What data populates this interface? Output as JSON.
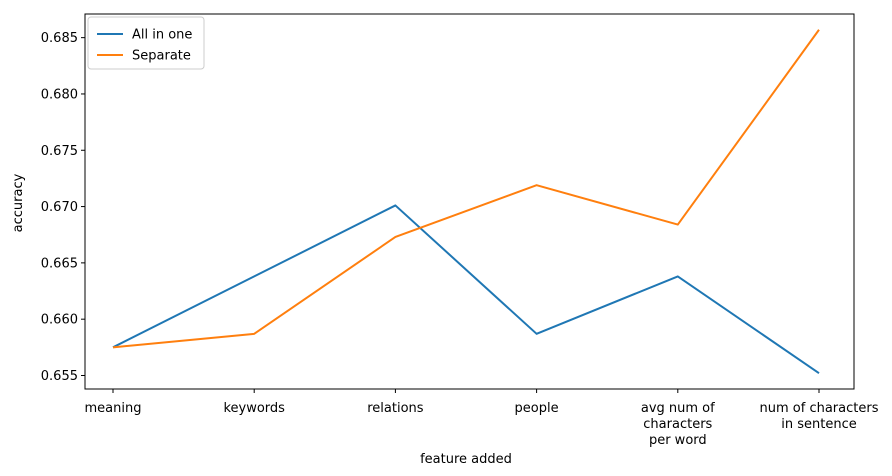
{
  "chart_data": {
    "type": "line",
    "categories": [
      [
        "meaning"
      ],
      [
        "keywords"
      ],
      [
        "relations"
      ],
      [
        "people"
      ],
      [
        "avg num of",
        "characters",
        "per word"
      ],
      [
        "num of characters",
        "in sentence"
      ]
    ],
    "series": [
      {
        "name": "All in one",
        "color": "#1f77b4",
        "values": [
          0.6575,
          0.6638,
          0.6701,
          0.6587,
          0.6638,
          0.6552
        ]
      },
      {
        "name": "Separate",
        "color": "#ff7f0e",
        "values": [
          0.6575,
          0.6587,
          0.6673,
          0.6719,
          0.6684,
          0.6857
        ]
      }
    ],
    "xlabel": "feature added",
    "ylabel": "accuracy",
    "ylim": [
      0.6538,
      0.6871
    ],
    "yticks": [
      0.655,
      0.66,
      0.665,
      0.67,
      0.675,
      0.68,
      0.685
    ],
    "ytick_labels": [
      "0.655",
      "0.660",
      "0.665",
      "0.670",
      "0.675",
      "0.680",
      "0.685"
    ],
    "legend_position": "top-left",
    "grid": false
  }
}
